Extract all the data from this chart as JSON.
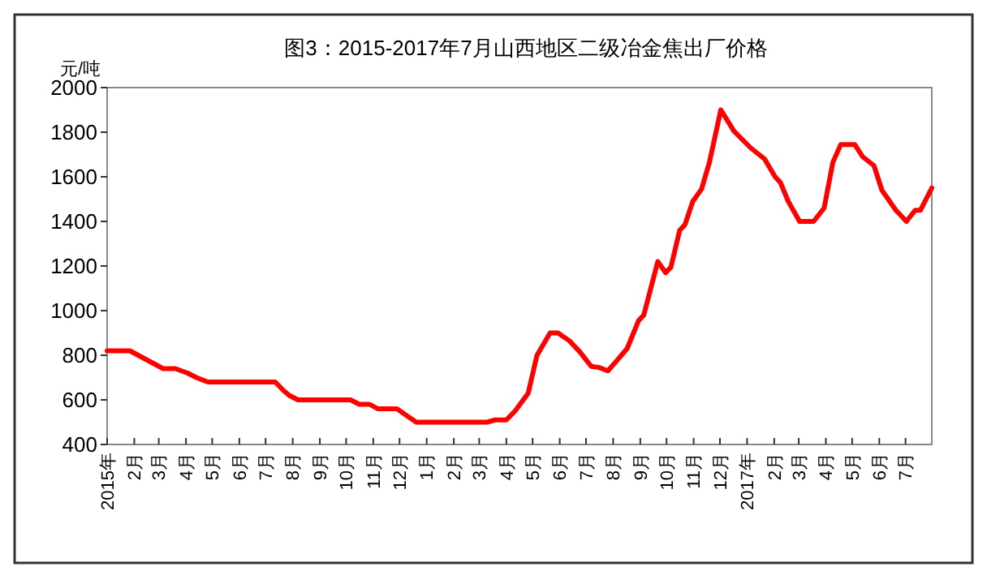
{
  "chart_data": {
    "type": "line",
    "title": "图3：2015-2017年7月山西地区二级冶金焦出厂价格",
    "ylabel": "元/吨",
    "x": [
      "2015-01-01",
      "2015-01-27",
      "2015-02-15",
      "2015-03-06",
      "2015-03-20",
      "2015-04-03",
      "2015-04-13",
      "2015-04-26",
      "2015-07-12",
      "2015-07-22",
      "2015-07-28",
      "2015-08-07",
      "2015-10-06",
      "2015-10-16",
      "2015-10-28",
      "2015-11-06",
      "2015-11-28",
      "2015-12-20",
      "2016-03-10",
      "2016-03-19",
      "2016-04-01",
      "2016-04-11",
      "2016-04-26",
      "2016-05-06",
      "2016-05-21",
      "2016-05-30",
      "2016-06-12",
      "2016-06-24",
      "2016-07-07",
      "2016-07-16",
      "2016-07-26",
      "2016-08-05",
      "2016-08-17",
      "2016-08-30",
      "2016-09-05",
      "2016-09-21",
      "2016-09-30",
      "2016-10-06",
      "2016-10-16",
      "2016-10-22",
      "2016-10-31",
      "2016-11-10",
      "2016-11-19",
      "2016-12-02",
      "2016-12-17",
      "2017-01-05",
      "2017-01-21",
      "2017-02-02",
      "2017-02-08",
      "2017-02-17",
      "2017-03-02",
      "2017-03-18",
      "2017-03-30",
      "2017-04-09",
      "2017-04-18",
      "2017-05-04",
      "2017-05-13",
      "2017-05-26",
      "2017-06-04",
      "2017-06-20",
      "2017-07-02",
      "2017-07-12",
      "2017-07-18",
      "2017-07-31"
    ],
    "series": [
      {
        "color": "#ff0000",
        "values": [
          820,
          820,
          780,
          740,
          740,
          720,
          700,
          680,
          680,
          640,
          620,
          600,
          600,
          580,
          580,
          560,
          560,
          500,
          500,
          510,
          510,
          550,
          630,
          800,
          900,
          900,
          865,
          815,
          750,
          745,
          730,
          775,
          830,
          955,
          980,
          1220,
          1170,
          1195,
          1360,
          1385,
          1490,
          1545,
          1665,
          1900,
          1805,
          1730,
          1680,
          1600,
          1575,
          1490,
          1400,
          1400,
          1460,
          1665,
          1745,
          1745,
          1690,
          1650,
          1540,
          1450,
          1400,
          1450,
          1450,
          1550
        ]
      }
    ],
    "xlim": [
      "2015-01-01",
      "2017-07-31"
    ],
    "xticks": [
      {
        "value": "2015-01-01",
        "label": "2015年"
      },
      {
        "value": "2015-02-01",
        "label": "2月"
      },
      {
        "value": "2015-03-01",
        "label": "3月"
      },
      {
        "value": "2015-04-01",
        "label": "4月"
      },
      {
        "value": "2015-05-01",
        "label": "5月"
      },
      {
        "value": "2015-06-01",
        "label": "6月"
      },
      {
        "value": "2015-07-01",
        "label": "7月"
      },
      {
        "value": "2015-08-01",
        "label": "8月"
      },
      {
        "value": "2015-09-01",
        "label": "9月"
      },
      {
        "value": "2015-10-01",
        "label": "10月"
      },
      {
        "value": "2015-11-01",
        "label": "11月"
      },
      {
        "value": "2015-12-01",
        "label": "12月"
      },
      {
        "value": "2016-01-01",
        "label": "1月"
      },
      {
        "value": "2016-02-01",
        "label": "2月"
      },
      {
        "value": "2016-03-01",
        "label": "3月"
      },
      {
        "value": "2016-04-01",
        "label": "4月"
      },
      {
        "value": "2016-05-01",
        "label": "5月"
      },
      {
        "value": "2016-06-01",
        "label": "6月"
      },
      {
        "value": "2016-07-01",
        "label": "7月"
      },
      {
        "value": "2016-08-01",
        "label": "8月"
      },
      {
        "value": "2016-09-01",
        "label": "9月"
      },
      {
        "value": "2016-10-01",
        "label": "10月"
      },
      {
        "value": "2016-11-01",
        "label": "11月"
      },
      {
        "value": "2016-12-01",
        "label": "12月"
      },
      {
        "value": "2017-01-01",
        "label": "2017年"
      },
      {
        "value": "2017-02-01",
        "label": "2月"
      },
      {
        "value": "2017-03-01",
        "label": "3月"
      },
      {
        "value": "2017-04-01",
        "label": "4月"
      },
      {
        "value": "2017-05-01",
        "label": "5月"
      },
      {
        "value": "2017-06-01",
        "label": "6月"
      },
      {
        "value": "2017-07-01",
        "label": "7月"
      }
    ],
    "ylim": [
      400,
      2000
    ],
    "yticks": [
      400,
      600,
      800,
      1000,
      1200,
      1400,
      1600,
      1800,
      2000
    ],
    "marker": "none",
    "line_style": "solid"
  }
}
